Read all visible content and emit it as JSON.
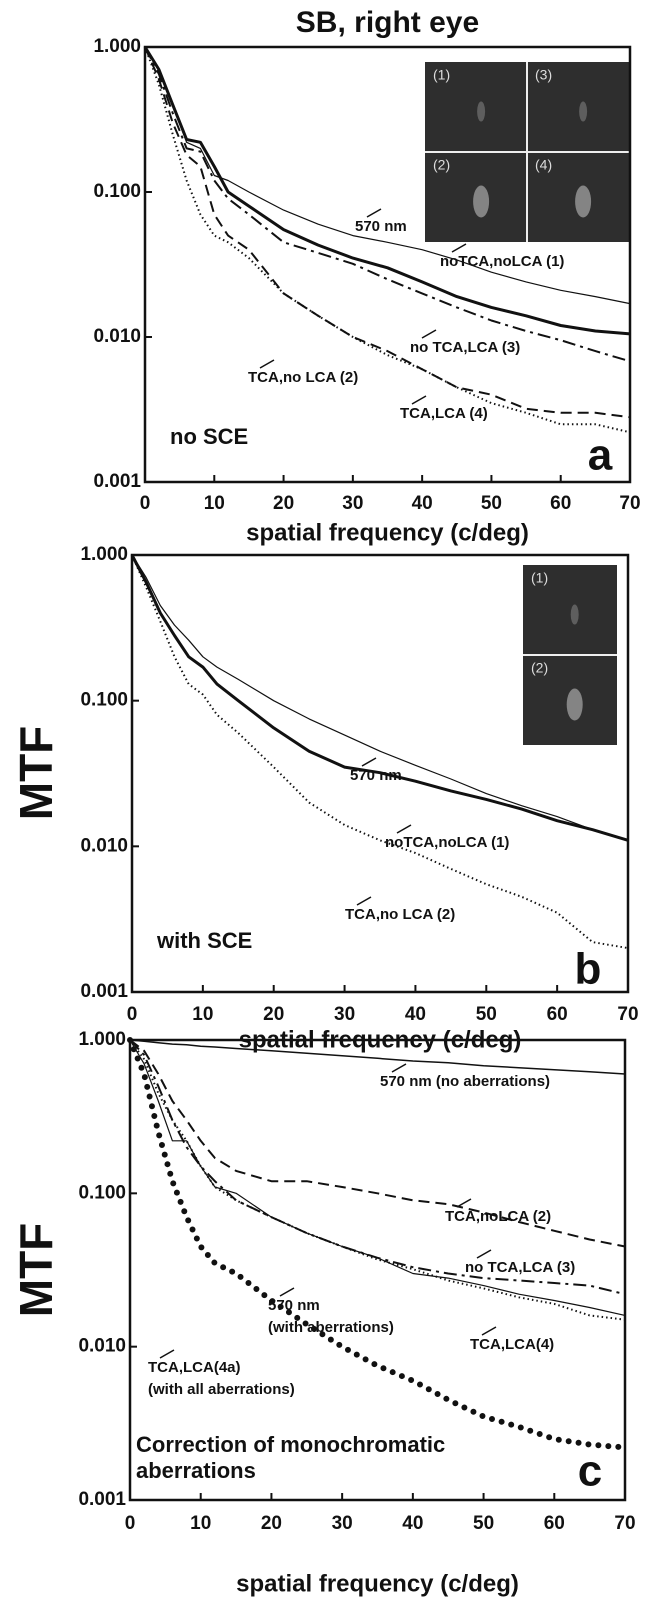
{
  "chart_data": [
    {
      "type": "line",
      "title": "SB, right eye",
      "panel_label": "a",
      "x_label": "spatial frequency (c/deg)",
      "annotations": [
        "no SCE"
      ],
      "inset_labels": [
        "(1)",
        "(3)",
        "(2)",
        "(4)"
      ],
      "y_scale": "log",
      "grid": false,
      "xlim": [
        0,
        70
      ],
      "ylim": [
        0.001,
        1
      ],
      "xticks": [
        0,
        10,
        20,
        30,
        40,
        50,
        60,
        70
      ],
      "yticks": [
        {
          "value": 0.001,
          "label": "0.001"
        },
        {
          "value": 0.01,
          "label": "0.010"
        },
        {
          "value": 0.1,
          "label": "0.100"
        },
        {
          "value": 1,
          "label": "1.000"
        }
      ],
      "x": [
        0,
        2,
        4,
        6,
        8,
        10,
        12,
        15,
        20,
        25,
        30,
        35,
        40,
        45,
        50,
        55,
        60,
        65,
        70
      ],
      "series": [
        {
          "name": "570 nm",
          "color": "#111111",
          "style": "solid",
          "width": 1.2,
          "values": [
            1,
            0.7,
            0.4,
            0.22,
            0.2,
            0.13,
            0.12,
            0.1,
            0.075,
            0.06,
            0.05,
            0.045,
            0.04,
            0.034,
            0.028,
            0.024,
            0.021,
            0.019,
            0.017
          ]
        },
        {
          "name": "noTCA,noLCA (1)",
          "color": "#111111",
          "style": "solid",
          "width": 3,
          "values": [
            1,
            0.7,
            0.4,
            0.23,
            0.22,
            0.15,
            0.1,
            0.08,
            0.055,
            0.043,
            0.035,
            0.03,
            0.024,
            0.019,
            0.016,
            0.014,
            0.012,
            0.011,
            0.0105
          ]
        },
        {
          "name": "no TCA,LCA (3)",
          "color": "#111111",
          "style": "dashdot",
          "width": 2,
          "values": [
            1,
            0.65,
            0.35,
            0.2,
            0.19,
            0.12,
            0.09,
            0.07,
            0.045,
            0.038,
            0.032,
            0.025,
            0.02,
            0.016,
            0.013,
            0.011,
            0.0095,
            0.008,
            0.0068
          ]
        },
        {
          "name": "TCA,no LCA (2)",
          "color": "#111111",
          "style": "dashed",
          "width": 2,
          "values": [
            1,
            0.6,
            0.3,
            0.18,
            0.15,
            0.07,
            0.05,
            0.04,
            0.02,
            0.014,
            0.01,
            0.008,
            0.006,
            0.0045,
            0.004,
            0.0032,
            0.003,
            0.003,
            0.0028
          ]
        },
        {
          "name": "TCA,LCA (4)",
          "color": "#111111",
          "style": "dotted",
          "width": 2,
          "values": [
            1,
            0.55,
            0.25,
            0.12,
            0.07,
            0.05,
            0.045,
            0.035,
            0.02,
            0.014,
            0.01,
            0.0075,
            0.006,
            0.0045,
            0.0035,
            0.003,
            0.0025,
            0.0025,
            0.0022
          ]
        }
      ]
    },
    {
      "type": "line",
      "panel_label": "b",
      "x_label": "spatial frequency (c/deg)",
      "y_label": "MTF",
      "annotations": [
        "with SCE"
      ],
      "inset_labels": [
        "(1)",
        "(2)"
      ],
      "y_scale": "log",
      "grid": false,
      "xlim": [
        0,
        70
      ],
      "ylim": [
        0.001,
        1
      ],
      "xticks": [
        0,
        10,
        20,
        30,
        40,
        50,
        60,
        70
      ],
      "yticks": [
        {
          "value": 0.001,
          "label": "0.001"
        },
        {
          "value": 0.01,
          "label": "0.010"
        },
        {
          "value": 0.1,
          "label": "0.100"
        },
        {
          "value": 1,
          "label": "1.000"
        }
      ],
      "x": [
        0,
        2,
        4,
        6,
        8,
        10,
        12,
        15,
        20,
        25,
        30,
        35,
        40,
        45,
        50,
        55,
        60,
        65,
        70
      ],
      "series": [
        {
          "name": "570 nm",
          "color": "#111111",
          "style": "solid",
          "width": 1.2,
          "values": [
            1,
            0.7,
            0.45,
            0.33,
            0.26,
            0.2,
            0.17,
            0.14,
            0.1,
            0.075,
            0.058,
            0.045,
            0.036,
            0.029,
            0.023,
            0.019,
            0.016,
            0.013,
            0.011
          ]
        },
        {
          "name": "noTCA,noLCA (1)",
          "color": "#111111",
          "style": "solid",
          "width": 3,
          "values": [
            1,
            0.65,
            0.4,
            0.28,
            0.2,
            0.17,
            0.13,
            0.1,
            0.065,
            0.045,
            0.035,
            0.032,
            0.028,
            0.024,
            0.021,
            0.018,
            0.015,
            0.013,
            0.011
          ]
        },
        {
          "name": "TCA,no LCA (2)",
          "color": "#111111",
          "style": "dotted",
          "width": 2,
          "values": [
            1,
            0.6,
            0.35,
            0.2,
            0.13,
            0.11,
            0.08,
            0.06,
            0.035,
            0.02,
            0.014,
            0.011,
            0.009,
            0.007,
            0.0055,
            0.0045,
            0.0035,
            0.0022,
            0.002
          ]
        }
      ]
    },
    {
      "type": "line",
      "panel_label": "c",
      "x_label": "spatial frequency (c/deg)",
      "y_label": "MTF",
      "annotations": [
        [
          "Correction of monochromatic",
          "aberrations"
        ]
      ],
      "y_scale": "log",
      "grid": false,
      "xlim": [
        0,
        70
      ],
      "ylim": [
        0.001,
        1
      ],
      "xticks": [
        0,
        10,
        20,
        30,
        40,
        50,
        60,
        70
      ],
      "yticks": [
        {
          "value": 0.001,
          "label": "0.001"
        },
        {
          "value": 0.01,
          "label": "0.010"
        },
        {
          "value": 0.1,
          "label": "0.100"
        },
        {
          "value": 1,
          "label": "1.000"
        }
      ],
      "x": [
        0,
        2,
        4,
        6,
        8,
        10,
        12,
        15,
        20,
        25,
        30,
        35,
        40,
        45,
        50,
        55,
        60,
        65,
        70
      ],
      "series": [
        {
          "name": "570 nm (no aberrations)",
          "color": "#111111",
          "style": "solid",
          "width": 1.5,
          "values": [
            1,
            0.98,
            0.96,
            0.94,
            0.93,
            0.91,
            0.9,
            0.88,
            0.85,
            0.82,
            0.79,
            0.76,
            0.73,
            0.71,
            0.68,
            0.66,
            0.64,
            0.62,
            0.6
          ]
        },
        {
          "name": "TCA,noLCA (2)",
          "color": "#111111",
          "style": "dashed",
          "width": 2,
          "values": [
            1,
            0.85,
            0.6,
            0.4,
            0.3,
            0.22,
            0.17,
            0.14,
            0.12,
            0.12,
            0.11,
            0.1,
            0.09,
            0.085,
            0.075,
            0.065,
            0.057,
            0.05,
            0.045
          ]
        },
        {
          "name": "no TCA,LCA (3)",
          "color": "#111111",
          "style": "dashdot",
          "width": 2,
          "values": [
            1,
            0.8,
            0.5,
            0.3,
            0.2,
            0.15,
            0.12,
            0.09,
            0.07,
            0.055,
            0.045,
            0.038,
            0.033,
            0.03,
            0.028,
            0.027,
            0.026,
            0.025,
            0.022
          ]
        },
        {
          "name": [
            "570 nm",
            "(with aberrations)"
          ],
          "color": "#111111",
          "style": "solid",
          "width": 1.2,
          "values": [
            1,
            0.7,
            0.4,
            0.22,
            0.22,
            0.15,
            0.11,
            0.1,
            0.07,
            0.055,
            0.045,
            0.038,
            0.03,
            0.028,
            0.025,
            0.022,
            0.02,
            0.018,
            0.016
          ]
        },
        {
          "name": "TCA,LCA(4)",
          "color": "#111111",
          "style": "dotted",
          "width": 2,
          "values": [
            1,
            0.75,
            0.45,
            0.3,
            0.22,
            0.15,
            0.11,
            0.09,
            0.07,
            0.055,
            0.045,
            0.037,
            0.032,
            0.027,
            0.024,
            0.021,
            0.019,
            0.016,
            0.015
          ]
        },
        {
          "name": [
            "TCA,LCA(4a)",
            "(with all aberrations)"
          ],
          "color": "#111111",
          "style": "bigdots",
          "width": 6,
          "values": [
            1,
            0.6,
            0.25,
            0.12,
            0.07,
            0.045,
            0.035,
            0.03,
            0.02,
            0.014,
            0.01,
            0.0075,
            0.006,
            0.0045,
            0.0035,
            0.003,
            0.0025,
            0.0023,
            0.0022
          ]
        }
      ]
    }
  ]
}
